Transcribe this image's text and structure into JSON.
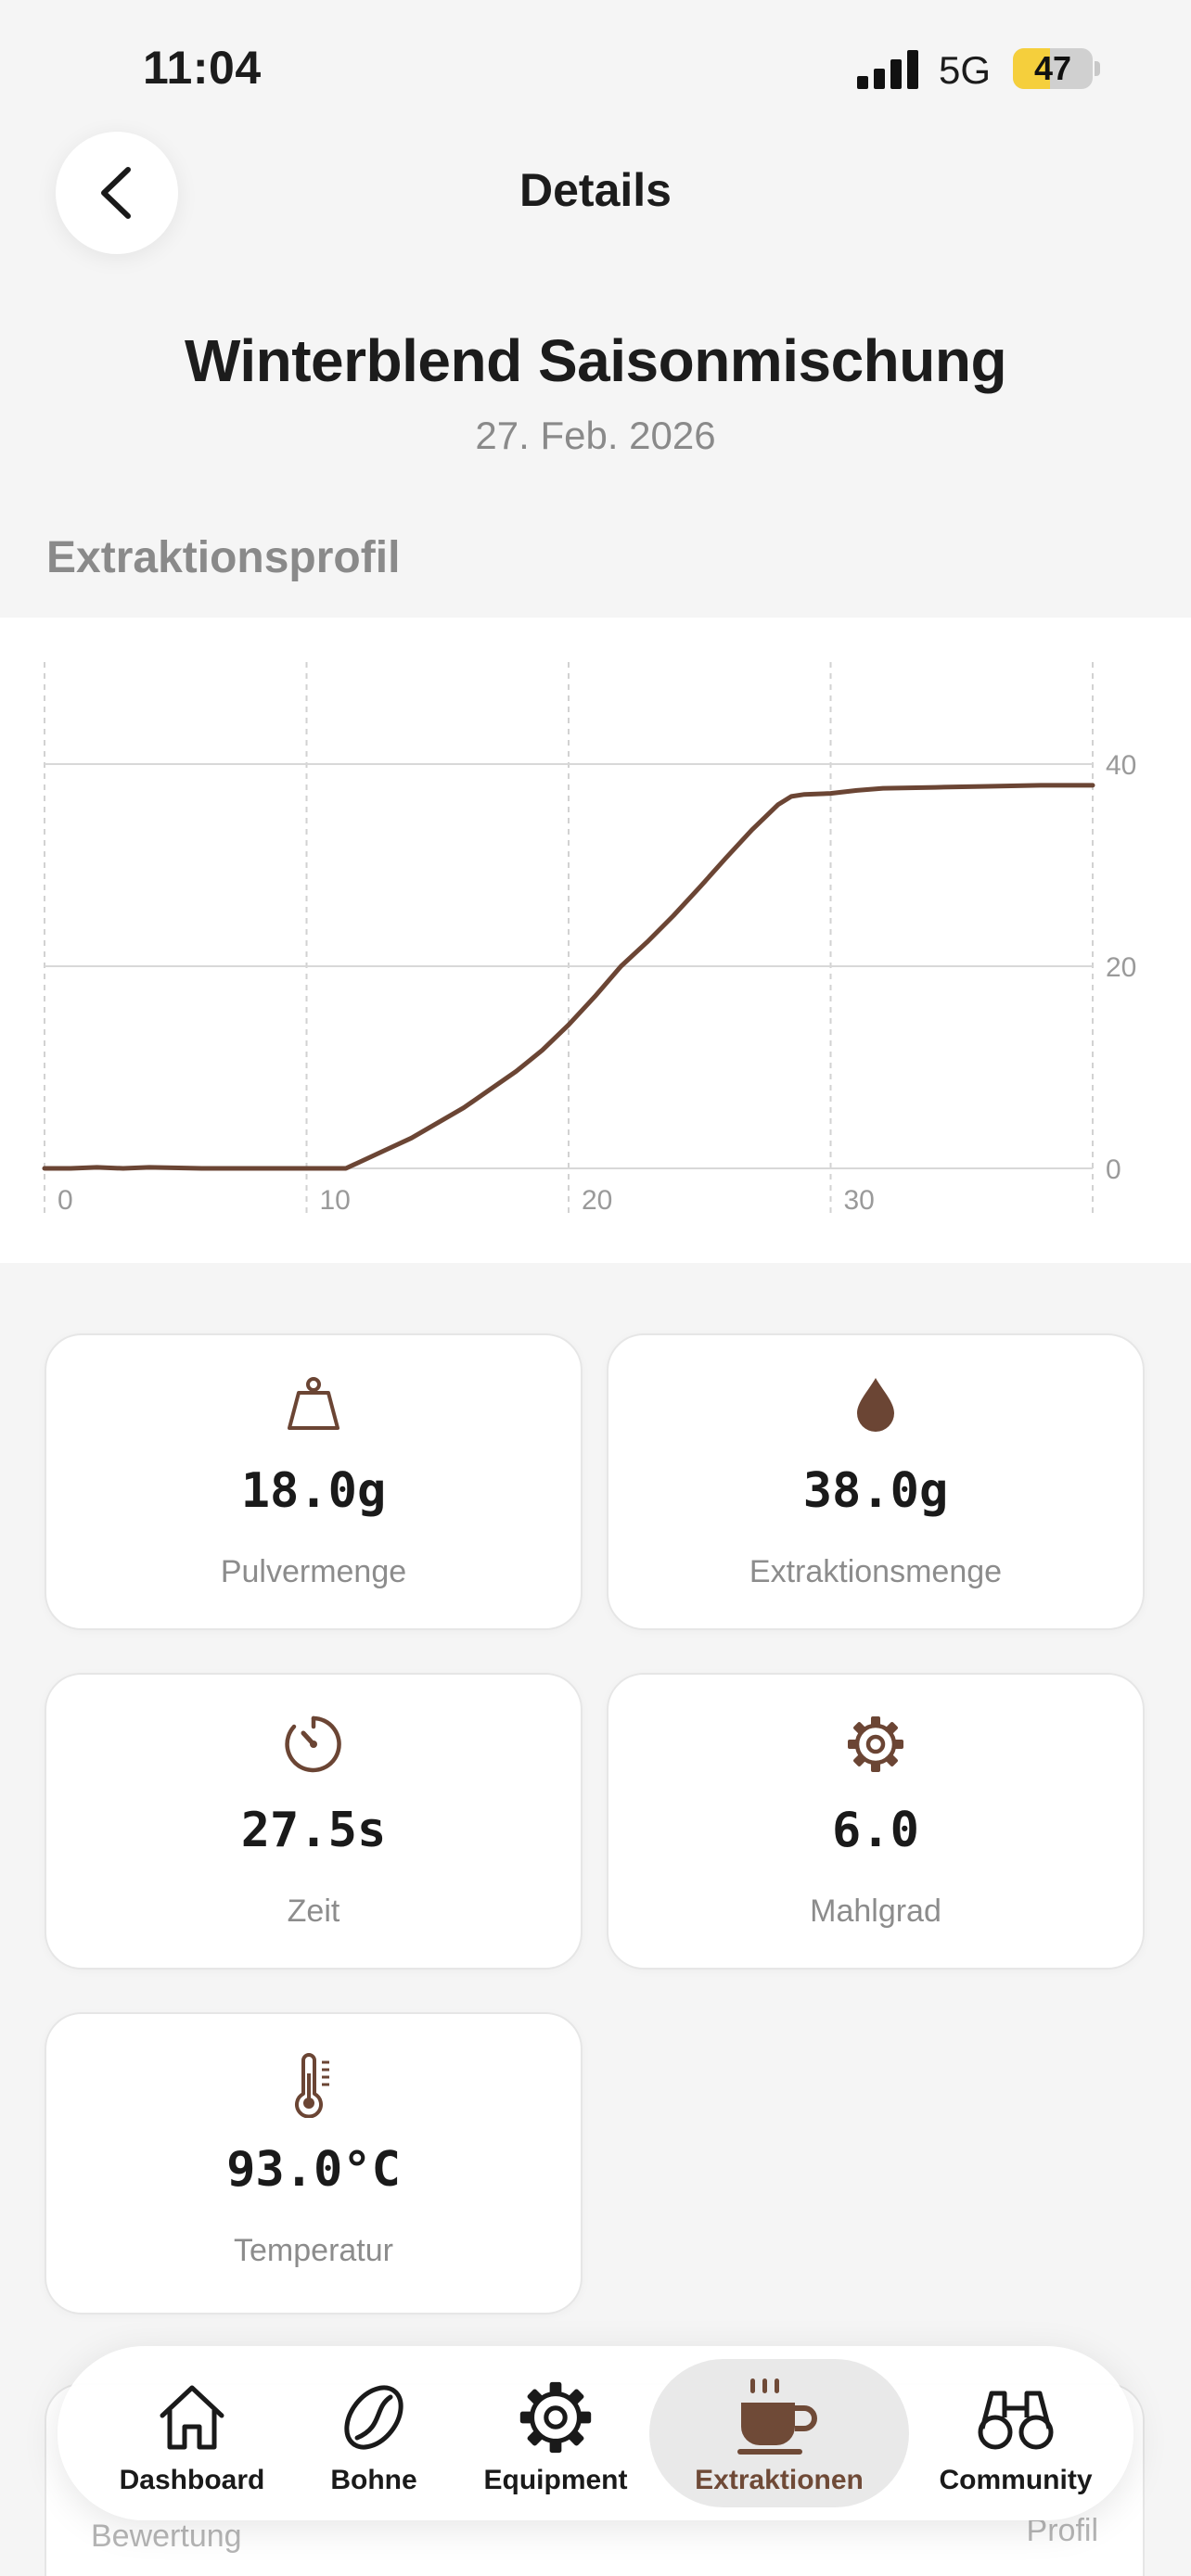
{
  "status_bar": {
    "time": "11:04",
    "network": "5G",
    "battery_level": "47",
    "battery_fraction": 0.47,
    "icons": [
      "signal-icon",
      "battery-icon"
    ]
  },
  "header": {
    "back_icon": "chevron-left-icon",
    "title": "Details"
  },
  "bean": {
    "name": "Winterblend Saisonmischung",
    "date": "27. Feb. 2026"
  },
  "profile_section": {
    "title": "Extraktionsprofil"
  },
  "chart_data": {
    "type": "line",
    "title": "",
    "xlabel": "",
    "ylabel": "",
    "x_ticks": [
      0,
      10,
      20,
      30
    ],
    "y_ticks": [
      0,
      20,
      40
    ],
    "xlim": [
      0,
      40
    ],
    "ylim": [
      0,
      40
    ],
    "grid": true,
    "y_axis_side": "right",
    "line_color": "#6b4534",
    "series": [
      {
        "x": [
          0,
          1,
          2,
          3,
          4,
          6,
          8,
          10,
          11.5,
          12,
          13,
          14,
          15,
          16,
          17,
          18,
          19,
          20,
          21,
          22,
          23,
          24,
          25,
          26,
          27,
          28,
          28.5,
          29,
          30,
          31,
          32,
          34,
          36,
          38,
          40
        ],
        "y": [
          0,
          0,
          0.1,
          0,
          0.1,
          0,
          0,
          0,
          0,
          0.6,
          1.8,
          3.0,
          4.5,
          6.0,
          7.8,
          9.6,
          11.7,
          14.2,
          17.0,
          20.0,
          22.4,
          25.0,
          27.8,
          30.7,
          33.5,
          36.0,
          36.8,
          37.0,
          37.1,
          37.4,
          37.6,
          37.7,
          37.8,
          37.9,
          37.9
        ]
      }
    ]
  },
  "stats": [
    {
      "icon": "scale-icon",
      "value": "18.0g",
      "label": "Pulvermenge"
    },
    {
      "icon": "drop-icon",
      "value": "38.0g",
      "label": "Extraktionsmenge"
    },
    {
      "icon": "timer-icon",
      "value": "27.5s",
      "label": "Zeit"
    },
    {
      "icon": "gear-icon",
      "value": "6.0",
      "label": "Mahlgrad"
    },
    {
      "icon": "thermometer-icon",
      "value": "93.0°C",
      "label": "Temperatur"
    }
  ],
  "hidden_card": {
    "left_label": "Bewertung",
    "right_label": "Profil"
  },
  "tabs": [
    {
      "icon": "house-icon",
      "label": "Dashboard",
      "active": false
    },
    {
      "icon": "coffee-bean-icon",
      "label": "Bohne",
      "active": false
    },
    {
      "icon": "gear-icon",
      "label": "Equipment",
      "active": false
    },
    {
      "icon": "coffee-cup-icon",
      "label": "Extraktionen",
      "active": true
    },
    {
      "icon": "binoculars-icon",
      "label": "Community",
      "active": false
    }
  ]
}
